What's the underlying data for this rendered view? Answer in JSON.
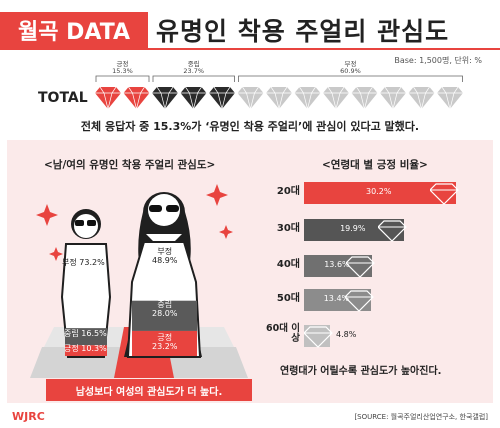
{
  "header": {
    "tag": "월곡 DATA",
    "title": "유명인 착용 주얼리 관심도",
    "base_note": "Base: 1,500명, 단위: %"
  },
  "total": {
    "label": "TOTAL",
    "summary": "전체 응답자 중 15.3%가 ‘유명인 착용 주얼리’에 관심이 있다고 말했다."
  },
  "left_panel": {
    "title": "<남/여의 유명인 착용 주얼리 관심도>",
    "banner": "남성보다 여성의 관심도가 더 높다.",
    "female_labels": {
      "neg": "부정\n48.9%",
      "mid": "중립\n28.0%",
      "pos": "긍정\n23.2%"
    },
    "male_labels": {
      "neg": "부정 73.2%",
      "mid": "중립 16.5%",
      "pos": "긍정 10.3%"
    }
  },
  "right_panel": {
    "title": "<연령대 별 긍정 비율>",
    "conclusion": "연령대가 어릴수록 관심도가 높아진다."
  },
  "footer": {
    "logo": "WJRC",
    "source": "[SOURCE: 월곡주얼리산업연구소, 한국갤럽]"
  },
  "colors": {
    "accent": "#e8443f",
    "dark": "#2b2b2b",
    "light_gray": "#c9c9c9",
    "panel_bg": "#fbeaea",
    "age_bar_colors": [
      "#e8443f",
      "#555555",
      "#707070",
      "#8c8c8c",
      "#c0c0c0"
    ]
  },
  "chart_data": [
    {
      "type": "bar",
      "title": "TOTAL",
      "categories": [
        "긍정",
        "중립",
        "부정"
      ],
      "values": [
        15.3,
        23.7,
        60.9
      ],
      "labels": [
        "긍정\n15.3%",
        "중립\n23.7%",
        "부정\n60.9%"
      ],
      "gem_counts": [
        2,
        3,
        8
      ]
    },
    {
      "type": "bar",
      "title": "<남/여의 유명인 착용 주얼리 관심도>",
      "categories": [
        "남성",
        "여성"
      ],
      "series": [
        {
          "name": "긍정",
          "values": [
            10.3,
            23.2
          ]
        },
        {
          "name": "중립",
          "values": [
            16.5,
            28.0
          ]
        },
        {
          "name": "부정",
          "values": [
            73.2,
            48.9
          ]
        }
      ]
    },
    {
      "type": "bar",
      "title": "<연령대 별 긍정 비율>",
      "categories": [
        "20대",
        "30대",
        "40대",
        "50대",
        "60대 이상"
      ],
      "values": [
        30.2,
        19.9,
        13.6,
        13.4,
        4.8
      ],
      "value_labels": [
        "30.2%",
        "19.9%",
        "13.6%",
        "13.4%",
        "4.8%"
      ]
    }
  ]
}
